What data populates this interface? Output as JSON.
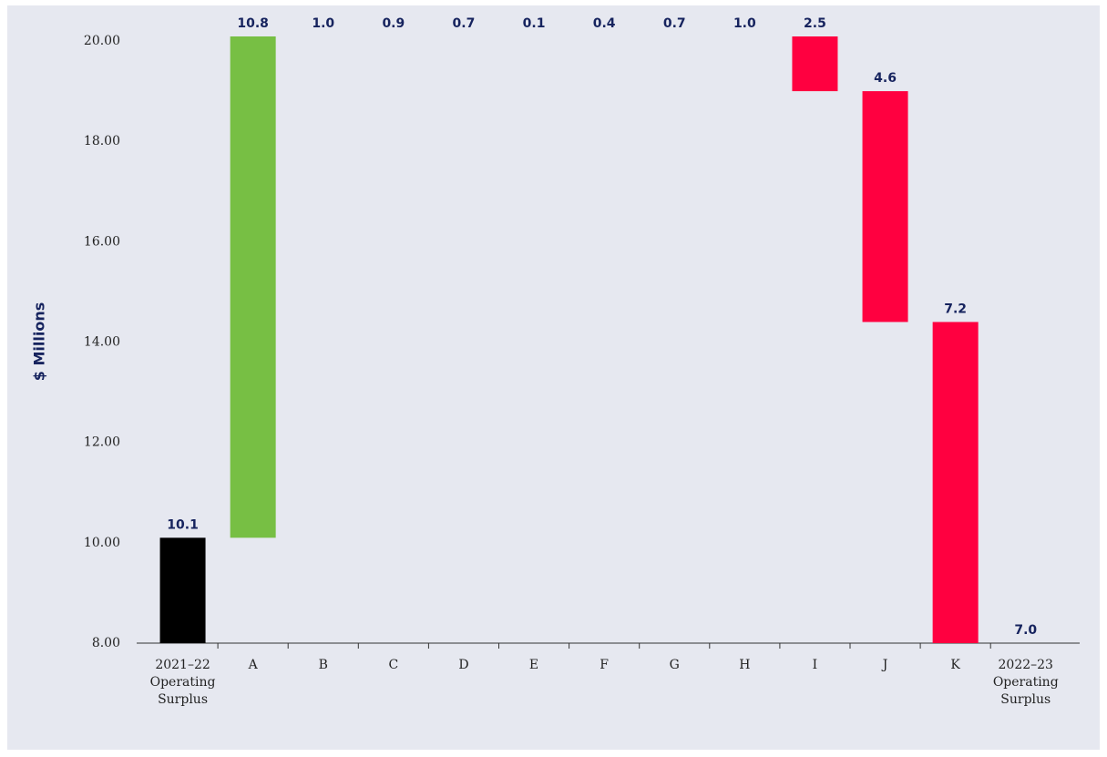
{
  "chart_data": {
    "type": "waterfall",
    "ylabel": "$ Millions",
    "categories": [
      "2021–22 Operating Surplus",
      "A",
      "B",
      "C",
      "D",
      "E",
      "F",
      "G",
      "H",
      "I",
      "J",
      "K",
      "2022–23 Operating Surplus"
    ],
    "values": [
      10.1,
      10.8,
      1.0,
      0.9,
      0.7,
      0.1,
      0.4,
      0.7,
      1.0,
      2.5,
      4.6,
      7.2,
      7.0
    ],
    "value_labels": [
      "10.1",
      "10.8",
      "1.0",
      "0.9",
      "0.7",
      "0.1",
      "0.4",
      "0.7",
      "1.0",
      "2.5",
      "4.6",
      "7.2",
      "7.0"
    ],
    "measures": [
      "total",
      "increase",
      "increase",
      "increase",
      "increase",
      "increase",
      "decrease",
      "decrease",
      "decrease",
      "decrease",
      "decrease",
      "decrease",
      "total"
    ],
    "colors": {
      "total": "#000000",
      "increase": "#77bf44",
      "decrease": "#ff0040"
    },
    "ylim": [
      8,
      20
    ],
    "yticks": [
      {
        "value": 8,
        "label": "8.00"
      },
      {
        "value": 10,
        "label": "10.00"
      },
      {
        "value": 12,
        "label": "12.00"
      },
      {
        "value": 14,
        "label": "14.00"
      },
      {
        "value": 16,
        "label": "16.00"
      },
      {
        "value": 18,
        "label": "18.00"
      },
      {
        "value": 20,
        "label": "20.00"
      }
    ],
    "grid": false
  }
}
